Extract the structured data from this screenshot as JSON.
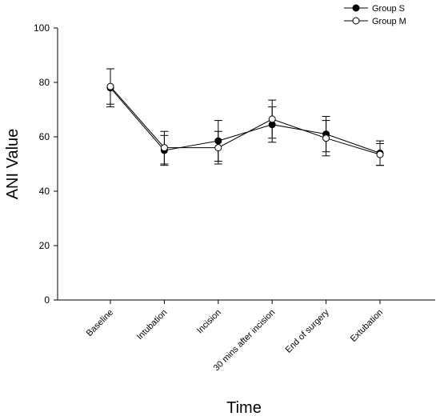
{
  "chart_data": {
    "type": "line",
    "title": "",
    "xlabel": "Time",
    "ylabel": "ANI Value",
    "categories": [
      "Baseline",
      "Intubation",
      "Incision",
      "30 mins after incision",
      "End of surgery",
      "Extubation"
    ],
    "ylim": [
      0,
      100
    ],
    "yticks": [
      0,
      20,
      40,
      60,
      80,
      100
    ],
    "grid": false,
    "legend": "top-right",
    "series": [
      {
        "name": "Group S",
        "marker": "filled-circle",
        "color": "#000000",
        "values": [
          78,
          55,
          58.5,
          64.5,
          61,
          54
        ],
        "error": [
          7,
          5.5,
          7.5,
          6.5,
          6.5,
          4.5
        ]
      },
      {
        "name": "Group M",
        "marker": "open-circle",
        "color": "#000000",
        "values": [
          78.5,
          56,
          56,
          66.5,
          59.5,
          53.5
        ],
        "error": [
          6.5,
          6,
          6,
          7,
          6.5,
          4
        ]
      }
    ]
  }
}
